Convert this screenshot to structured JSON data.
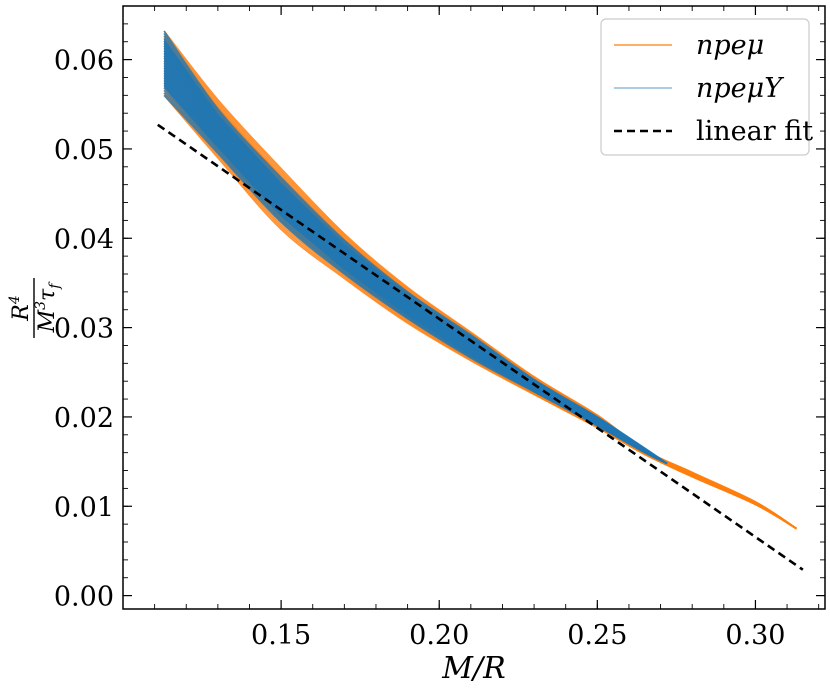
{
  "chart_data": {
    "type": "line",
    "xlabel": "M/R",
    "ylabel": {
      "numerator": "R",
      "numerator_exp": "4",
      "denominator": "M",
      "denominator_exp": "3",
      "denominator_tail": "τ",
      "denominator_sub": "f"
    },
    "xlim": [
      0.1,
      0.322
    ],
    "ylim": [
      -0.0015,
      0.066
    ],
    "x_ticks": [
      0.15,
      0.2,
      0.25,
      0.3
    ],
    "x_tick_labels": [
      "0.15",
      "0.20",
      "0.25",
      "0.30"
    ],
    "y_ticks": [
      0.0,
      0.01,
      0.02,
      0.03,
      0.04,
      0.05,
      0.06
    ],
    "y_tick_labels": [
      "0.00",
      "0.01",
      "0.02",
      "0.03",
      "0.04",
      "0.05",
      "0.06"
    ],
    "grid": false,
    "legend_position": "top-right",
    "series": [
      {
        "name": "npeμ",
        "color": "#ff7f0e",
        "style": "band",
        "x": [
          0.113,
          0.13,
          0.15,
          0.17,
          0.19,
          0.21,
          0.23,
          0.25,
          0.265,
          0.28,
          0.3,
          0.313
        ],
        "upper": [
          0.0632,
          0.0555,
          0.0478,
          0.0405,
          0.0345,
          0.0295,
          0.0245,
          0.0202,
          0.0163,
          0.0138,
          0.0105,
          0.0075
        ],
        "lower": [
          0.056,
          0.049,
          0.041,
          0.0355,
          0.0305,
          0.0263,
          0.0225,
          0.0188,
          0.0158,
          0.0133,
          0.0102,
          0.0075
        ]
      },
      {
        "name": "npeμY",
        "color": "#1f77b4",
        "style": "band",
        "x": [
          0.113,
          0.13,
          0.15,
          0.17,
          0.19,
          0.21,
          0.23,
          0.25,
          0.265,
          0.272
        ],
        "upper": [
          0.0632,
          0.0545,
          0.0468,
          0.0398,
          0.034,
          0.0292,
          0.0242,
          0.02,
          0.0165,
          0.0148
        ],
        "lower": [
          0.056,
          0.0495,
          0.0418,
          0.036,
          0.031,
          0.0266,
          0.0228,
          0.019,
          0.016,
          0.0148
        ]
      },
      {
        "name": "linear fit",
        "color": "#000000",
        "style": "dashed",
        "x": [
          0.111,
          0.315
        ],
        "y": [
          0.0527,
          0.0029
        ]
      }
    ]
  }
}
